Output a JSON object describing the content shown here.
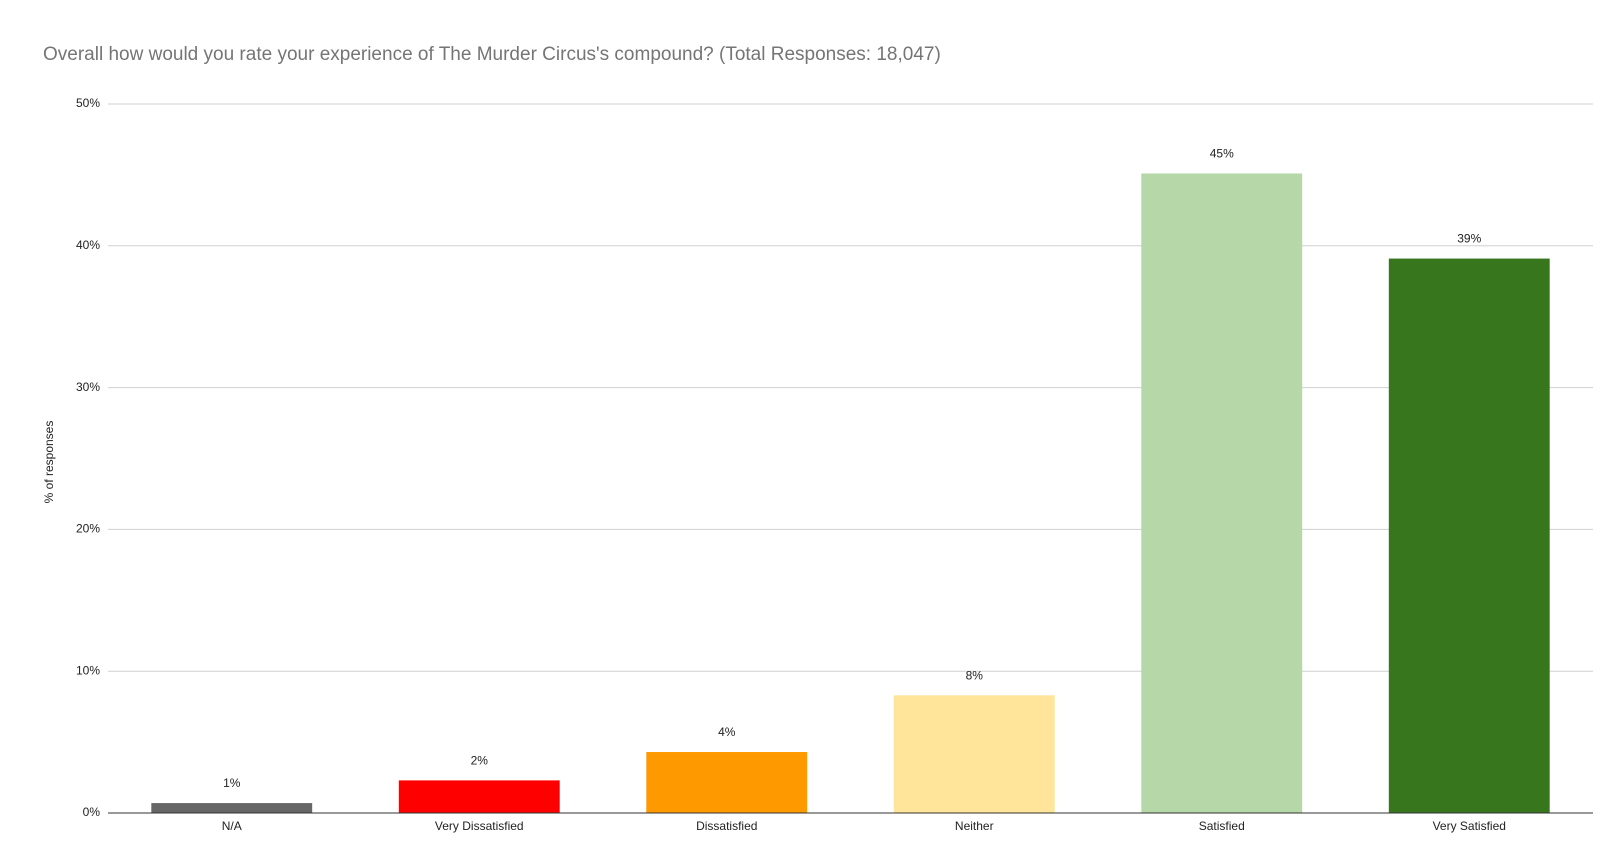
{
  "chart_data": {
    "type": "bar",
    "title": "Overall how would you rate your experience of The Murder Circus's compound? (Total Responses: 18,047)",
    "y_label": "% of responses",
    "categories": [
      "N/A",
      "Very Dissatisfied",
      "Dissatisfied",
      "Neither",
      "Satisfied",
      "Very Satisfied"
    ],
    "values": [
      0.7,
      2.3,
      4.3,
      8.3,
      45.1,
      39.1
    ],
    "value_labels": [
      "1%",
      "2%",
      "4%",
      "8%",
      "45%",
      "39%"
    ],
    "colors": [
      "#666666",
      "#ff0000",
      "#ff9900",
      "#ffe599",
      "#b6d7a8",
      "#38761d"
    ],
    "ylim": [
      0,
      50
    ],
    "yticks": [
      {
        "value": 0,
        "label": "0%"
      },
      {
        "value": 10,
        "label": "10%"
      },
      {
        "value": 20,
        "label": "20%"
      },
      {
        "value": 30,
        "label": "30%"
      },
      {
        "value": 40,
        "label": "40%"
      },
      {
        "value": 50,
        "label": "50%"
      }
    ],
    "grid": true
  }
}
